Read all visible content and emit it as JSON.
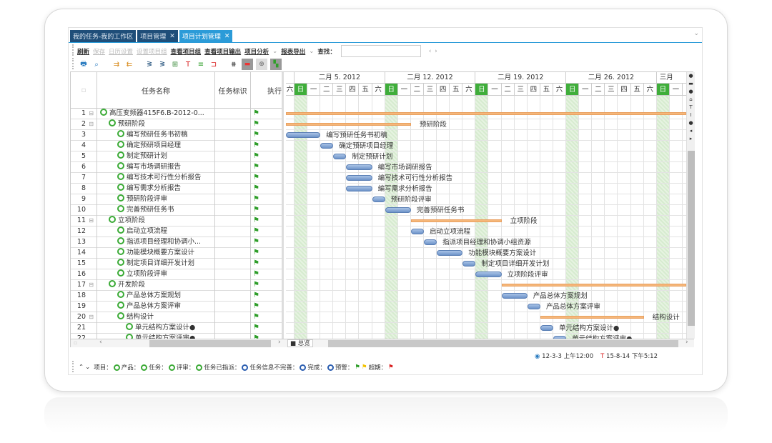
{
  "tabs": [
    {
      "label": "我的任务-我的工作区",
      "closable": false
    },
    {
      "label": "项目管理",
      "closable": true
    },
    {
      "label": "项目计划管理",
      "closable": true,
      "active": true
    }
  ],
  "toolbar": {
    "items": [
      {
        "label": "刷新",
        "enabled": true
      },
      {
        "label": "保存",
        "enabled": false
      },
      {
        "label": "日历设置",
        "enabled": false
      },
      {
        "label": "设置项目组",
        "enabled": false
      },
      {
        "label": "查看项目组",
        "enabled": true
      },
      {
        "label": "查看项目输出",
        "enabled": true
      },
      {
        "label": "项目分析",
        "enabled": true,
        "dropdown": true
      },
      {
        "label": "报表导出",
        "enabled": true,
        "dropdown": true
      }
    ],
    "find_label": "查找：",
    "search_value": "",
    "prev": "‹",
    "next": "›"
  },
  "icons": [
    "print-icon",
    "preview-icon",
    "indent-icon",
    "outdent-icon",
    "link-icon",
    "unlink-icon",
    "filter-icon",
    "critical-path-icon",
    "split-icon",
    "columns-icon",
    "today-icon",
    "center-icon",
    "zoom-fit-icon"
  ],
  "columns": {
    "index": "",
    "name": "任务名称",
    "tag": "任务标识",
    "exec": "执行"
  },
  "gantt": {
    "weeks": [
      "二月 5. 2012",
      "二月 12. 2012",
      "二月 19. 2012",
      "二月 26. 2012",
      "三月"
    ],
    "weekdays": [
      "日",
      "一",
      "二",
      "三",
      "四",
      "五",
      "六"
    ],
    "first_visible_day": "六",
    "start_date": "2012-02-05"
  },
  "tasks": [
    {
      "no": "1",
      "name": "高压变频器415F6.B-2012-0...",
      "level": 0,
      "toggle": true,
      "summary": true,
      "start": "2012-02-04",
      "end": "2012-03-08",
      "label": ""
    },
    {
      "no": "2",
      "name": "预研阶段",
      "level": 1,
      "toggle": true,
      "summary": true,
      "start": "2012-02-04",
      "end": "2012-02-14",
      "label": "预研阶段"
    },
    {
      "no": "3",
      "name": "编写预研任务书初稿",
      "level": 2,
      "start": "2012-02-04",
      "end": "2012-02-07",
      "label": "编写预研任务书初稿"
    },
    {
      "no": "4",
      "name": "确定预研项目经理",
      "level": 2,
      "start": "2012-02-07",
      "end": "2012-02-08",
      "label": "确定预研项目经理"
    },
    {
      "no": "5",
      "name": "制定预研计划",
      "level": 2,
      "start": "2012-02-08",
      "end": "2012-02-09",
      "label": "制定预研计划"
    },
    {
      "no": "6",
      "name": "编写市场调研报告",
      "level": 2,
      "start": "2012-02-09",
      "end": "2012-02-11",
      "label": "编写市场调研报告"
    },
    {
      "no": "7",
      "name": "编写技术可行性分析报告",
      "level": 2,
      "start": "2012-02-09",
      "end": "2012-02-11",
      "label": "编写技术可行性分析报告"
    },
    {
      "no": "8",
      "name": "编写需求分析报告",
      "level": 2,
      "start": "2012-02-09",
      "end": "2012-02-11",
      "label": "编写需求分析报告"
    },
    {
      "no": "9",
      "name": "预研阶段评审",
      "level": 2,
      "start": "2012-02-11",
      "end": "2012-02-12",
      "label": "预研阶段评审"
    },
    {
      "no": "10",
      "name": "完善预研任务书",
      "level": 2,
      "start": "2012-02-12",
      "end": "2012-02-14",
      "label": "完善预研任务书"
    },
    {
      "no": "11",
      "name": "立项阶段",
      "level": 1,
      "toggle": true,
      "summary": true,
      "start": "2012-02-14",
      "end": "2012-02-21",
      "label": "立项阶段"
    },
    {
      "no": "12",
      "name": "启动立项流程",
      "level": 2,
      "start": "2012-02-14",
      "end": "2012-02-15",
      "label": "启动立项流程"
    },
    {
      "no": "13",
      "name": "指派项目经理和协调小...",
      "level": 2,
      "start": "2012-02-15",
      "end": "2012-02-16",
      "label": "指派项目经理和协调小组资源"
    },
    {
      "no": "14",
      "name": "功能模块概要方案设计",
      "level": 2,
      "start": "2012-02-16",
      "end": "2012-02-18",
      "label": "功能模块概要方案设计"
    },
    {
      "no": "15",
      "name": "制定项目详细开发计划",
      "level": 2,
      "start": "2012-02-18",
      "end": "2012-02-19",
      "label": "制定项目详细开发计划"
    },
    {
      "no": "16",
      "name": "立项阶段评审",
      "level": 2,
      "start": "2012-02-19",
      "end": "2012-02-21",
      "label": "立项阶段评审"
    },
    {
      "no": "17",
      "name": "开发阶段",
      "level": 1,
      "toggle": true,
      "summary": true,
      "start": "2012-02-21",
      "end": "2012-03-08",
      "label": ""
    },
    {
      "no": "18",
      "name": "产品总体方案规划",
      "level": 2,
      "start": "2012-02-21",
      "end": "2012-02-23",
      "label": "产品总体方案规划"
    },
    {
      "no": "19",
      "name": "产品总体方案评审",
      "level": 2,
      "start": "2012-02-23",
      "end": "2012-02-24",
      "label": "产品总体方案评审"
    },
    {
      "no": "20",
      "name": "结构设计",
      "level": 2,
      "toggle": true,
      "summary": true,
      "start": "2012-02-24",
      "end": "2012-03-03",
      "label": "结构设计"
    },
    {
      "no": "21",
      "name": "单元结构方案设计●",
      "level": 3,
      "start": "2012-02-24",
      "end": "2012-02-25",
      "label": "单元结构方案设计●"
    },
    {
      "no": "22",
      "name": "单元结构方案评审●",
      "level": 3,
      "start": "2012-02-25",
      "end": "2012-02-26",
      "label": "单元结构方案评审●"
    }
  ],
  "bottom_tab": "总览",
  "status": {
    "start": "12-3-3 上午12:00",
    "end": "15-8-14 下午5:12"
  },
  "legend": [
    {
      "label": "项目：",
      "color": "#3aaa35"
    },
    {
      "label": "产品：",
      "color": "#3aaa35"
    },
    {
      "label": "任务：",
      "color": "#3aaa35"
    },
    {
      "label": "评审：",
      "color": "#3aaa35"
    },
    {
      "label": "任务已指派：",
      "color": "#2a5db0"
    },
    {
      "label": "任务信息不完善：",
      "color": "#2a5db0"
    },
    {
      "label": "完成：",
      "color": "#2a5db0"
    },
    {
      "label": "预警：",
      "color": "#f2c200"
    },
    {
      "label": "超期：",
      "color": "#d92020"
    }
  ],
  "legend_flags": [
    "#2f9e2a",
    "#f2c200",
    "#d92020"
  ]
}
